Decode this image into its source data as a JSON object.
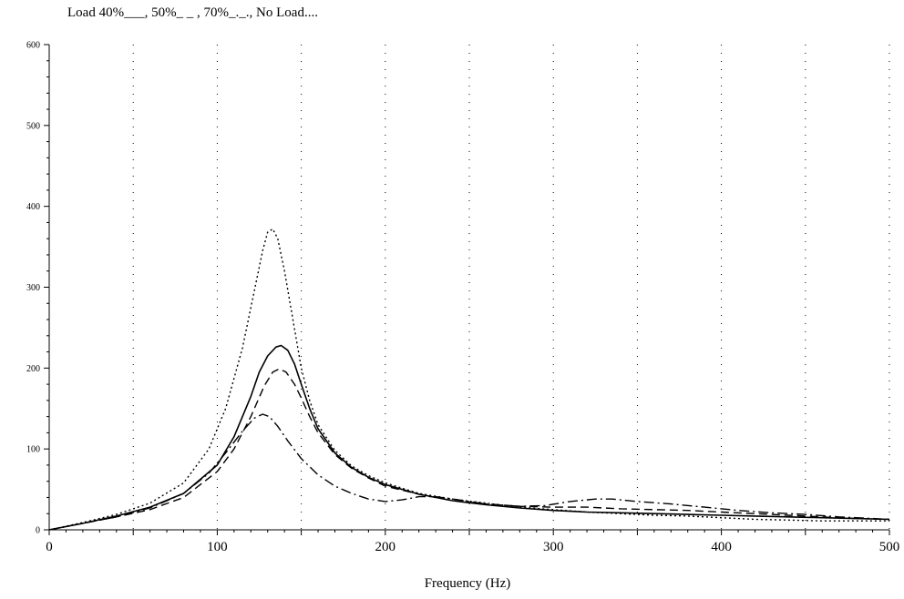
{
  "chart_data": {
    "type": "line",
    "title": "Load 40%___, 50%_ _ , 70%_._., No Load....",
    "xlabel": "Frequency (Hz)",
    "ylabel": "",
    "xlim": [
      0,
      500
    ],
    "ylim": [
      0,
      600
    ],
    "x_ticks": [
      0,
      100,
      200,
      300,
      400,
      500
    ],
    "x_tick_labels": [
      "0",
      "100",
      "200",
      "300",
      "400",
      "500"
    ],
    "y_ticks": [
      0,
      100,
      200,
      300,
      400,
      500,
      600
    ],
    "y_tick_labels": [
      "0",
      "100",
      "200",
      "300",
      "400",
      "500",
      "600"
    ],
    "vertical_grid_x": [
      50,
      100,
      150,
      200,
      250,
      300,
      350,
      400,
      450,
      500
    ],
    "grid_style": "dotted vertical",
    "series": [
      {
        "name": "Load 40%",
        "style": "solid",
        "points": [
          [
            0,
            0
          ],
          [
            20,
            8
          ],
          [
            40,
            17
          ],
          [
            60,
            28
          ],
          [
            80,
            45
          ],
          [
            100,
            80
          ],
          [
            110,
            115
          ],
          [
            120,
            165
          ],
          [
            125,
            195
          ],
          [
            130,
            215
          ],
          [
            135,
            226
          ],
          [
            138,
            228
          ],
          [
            142,
            222
          ],
          [
            146,
            205
          ],
          [
            150,
            180
          ],
          [
            155,
            150
          ],
          [
            160,
            125
          ],
          [
            170,
            95
          ],
          [
            180,
            77
          ],
          [
            190,
            65
          ],
          [
            200,
            56
          ],
          [
            220,
            44
          ],
          [
            240,
            36
          ],
          [
            260,
            31
          ],
          [
            280,
            27
          ],
          [
            300,
            24
          ],
          [
            320,
            22
          ],
          [
            340,
            21
          ],
          [
            360,
            20
          ],
          [
            380,
            19
          ],
          [
            400,
            18
          ],
          [
            420,
            17
          ],
          [
            440,
            16
          ],
          [
            460,
            15
          ],
          [
            480,
            14
          ],
          [
            500,
            13
          ]
        ]
      },
      {
        "name": "50%",
        "style": "dashed",
        "points": [
          [
            0,
            0
          ],
          [
            20,
            8
          ],
          [
            40,
            16
          ],
          [
            60,
            25
          ],
          [
            80,
            40
          ],
          [
            100,
            72
          ],
          [
            110,
            100
          ],
          [
            120,
            140
          ],
          [
            128,
            178
          ],
          [
            133,
            195
          ],
          [
            137,
            199
          ],
          [
            141,
            195
          ],
          [
            146,
            180
          ],
          [
            150,
            163
          ],
          [
            155,
            140
          ],
          [
            160,
            120
          ],
          [
            170,
            93
          ],
          [
            180,
            76
          ],
          [
            190,
            64
          ],
          [
            200,
            54
          ],
          [
            220,
            44
          ],
          [
            240,
            36
          ],
          [
            260,
            32
          ],
          [
            280,
            29
          ],
          [
            300,
            28
          ],
          [
            320,
            28
          ],
          [
            340,
            26
          ],
          [
            360,
            25
          ],
          [
            380,
            24
          ],
          [
            400,
            22
          ],
          [
            420,
            20
          ],
          [
            440,
            18
          ],
          [
            460,
            16
          ],
          [
            480,
            14
          ],
          [
            500,
            13
          ]
        ]
      },
      {
        "name": "70%",
        "style": "dashdot",
        "points": [
          [
            0,
            0
          ],
          [
            20,
            8
          ],
          [
            40,
            16
          ],
          [
            60,
            27
          ],
          [
            80,
            45
          ],
          [
            95,
            70
          ],
          [
            105,
            95
          ],
          [
            115,
            122
          ],
          [
            122,
            138
          ],
          [
            127,
            143
          ],
          [
            131,
            140
          ],
          [
            136,
            128
          ],
          [
            142,
            110
          ],
          [
            150,
            88
          ],
          [
            160,
            68
          ],
          [
            170,
            54
          ],
          [
            180,
            45
          ],
          [
            190,
            38
          ],
          [
            200,
            35
          ],
          [
            210,
            37
          ],
          [
            220,
            41
          ],
          [
            230,
            41
          ],
          [
            240,
            38
          ],
          [
            260,
            32
          ],
          [
            280,
            29
          ],
          [
            295,
            30
          ],
          [
            310,
            35
          ],
          [
            325,
            38
          ],
          [
            335,
            38
          ],
          [
            350,
            35
          ],
          [
            370,
            32
          ],
          [
            390,
            28
          ],
          [
            410,
            24
          ],
          [
            430,
            21
          ],
          [
            450,
            19
          ],
          [
            470,
            16
          ],
          [
            490,
            14
          ],
          [
            500,
            13
          ]
        ]
      },
      {
        "name": "No Load",
        "style": "dotted",
        "points": [
          [
            0,
            0
          ],
          [
            20,
            9
          ],
          [
            40,
            19
          ],
          [
            60,
            33
          ],
          [
            80,
            58
          ],
          [
            95,
            100
          ],
          [
            105,
            150
          ],
          [
            115,
            225
          ],
          [
            122,
            295
          ],
          [
            127,
            345
          ],
          [
            130,
            368
          ],
          [
            133,
            372
          ],
          [
            136,
            360
          ],
          [
            140,
            320
          ],
          [
            145,
            260
          ],
          [
            150,
            200
          ],
          [
            155,
            160
          ],
          [
            160,
            130
          ],
          [
            170,
            98
          ],
          [
            180,
            79
          ],
          [
            190,
            67
          ],
          [
            200,
            58
          ],
          [
            220,
            45
          ],
          [
            240,
            38
          ],
          [
            260,
            33
          ],
          [
            280,
            28
          ],
          [
            300,
            25
          ],
          [
            320,
            22
          ],
          [
            340,
            20
          ],
          [
            360,
            18
          ],
          [
            380,
            17
          ],
          [
            400,
            15
          ],
          [
            420,
            13
          ],
          [
            440,
            12
          ],
          [
            460,
            11
          ],
          [
            480,
            11
          ],
          [
            500,
            11
          ]
        ]
      }
    ]
  }
}
